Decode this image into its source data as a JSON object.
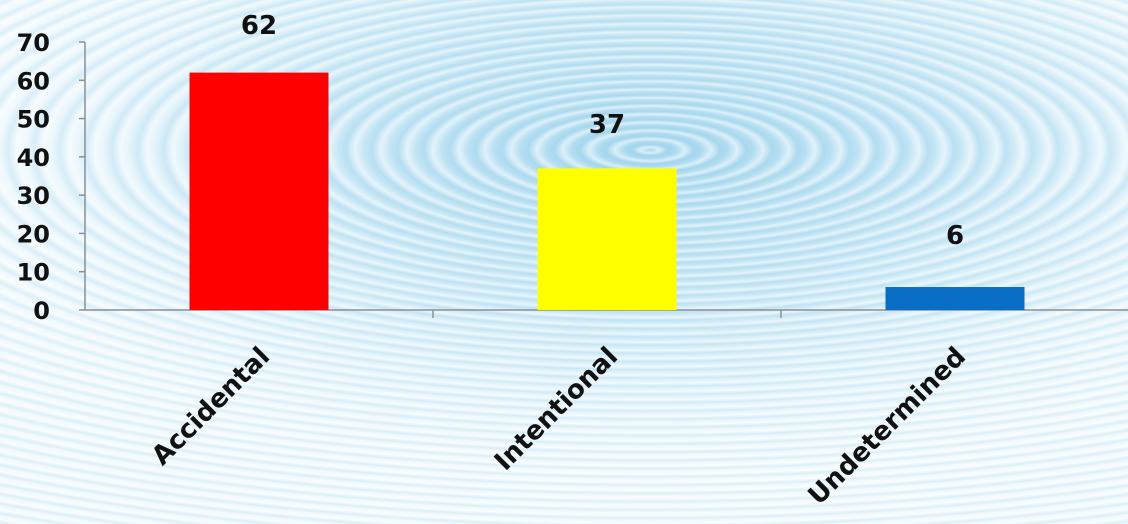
{
  "chart_data": {
    "type": "bar",
    "categories": [
      "Accidental",
      "Intentional",
      "Undetermined"
    ],
    "values": [
      62,
      37,
      6
    ],
    "data_labels": [
      "62",
      "37",
      "6"
    ],
    "colors": [
      "#ff0000",
      "#ffff00",
      "#0a6ec4"
    ],
    "ylim": [
      0,
      70
    ],
    "yticks": [
      "0",
      "10",
      "20",
      "30",
      "40",
      "50",
      "60",
      "70"
    ],
    "grid": false,
    "legend": "none"
  }
}
